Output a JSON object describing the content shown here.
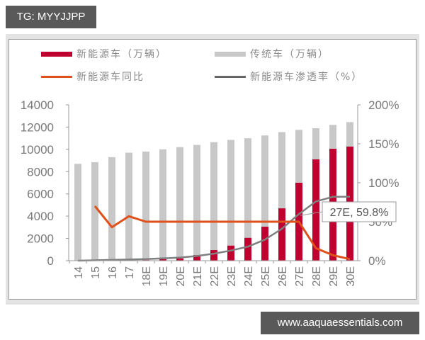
{
  "badge": {
    "text": "TG: MYYJJPP"
  },
  "watermark": {
    "text": "www.aaquaessentials.com"
  },
  "legend": {
    "nev_units": "新能源车（万辆）",
    "traditional_units": "传统车（万辆）",
    "nev_yoy": "新能源车同比",
    "nev_penetration": "新能源车渗透率（%）"
  },
  "annotation": {
    "text": "27E, 59.8%"
  },
  "colors": {
    "nev": "#c0002f",
    "traditional": "#c8c8c8",
    "yoy": "#e0501a",
    "penetration": "#7f7f7f",
    "axis": "#999999",
    "tick_text": "#7a7a7a"
  },
  "chart_data": {
    "type": "bar",
    "title": "",
    "xlabel": "",
    "ylabel": "",
    "categories": [
      "14",
      "15",
      "16",
      "17",
      "18E",
      "19E",
      "20E",
      "21E",
      "22E",
      "23E",
      "24E",
      "25E",
      "26E",
      "27E",
      "28E",
      "29E",
      "30E"
    ],
    "series": [
      {
        "name": "新能源车（万辆）",
        "type": "bar",
        "axis": "left",
        "values": [
          0,
          0,
          0,
          0,
          50,
          130,
          200,
          500,
          950,
          1350,
          2050,
          3050,
          4700,
          7000,
          9100,
          10050,
          10250
        ]
      },
      {
        "name": "传统车（万辆）",
        "type": "bar",
        "axis": "left",
        "stacked_total": true,
        "values": [
          8700,
          8850,
          9300,
          9700,
          9800,
          10000,
          10200,
          10400,
          10650,
          10850,
          11000,
          11250,
          11550,
          11750,
          11900,
          12200,
          12450
        ]
      },
      {
        "name": "新能源车同比",
        "type": "line",
        "axis": "right",
        "values": [
          null,
          70,
          43,
          57,
          50,
          50,
          50,
          50,
          50,
          50,
          50,
          50,
          50,
          50,
          16,
          7,
          2
        ]
      },
      {
        "name": "新能源车渗透率（%）",
        "type": "line",
        "axis": "right",
        "values": [
          0,
          0.5,
          1,
          1.5,
          2,
          3,
          4,
          6,
          9,
          13,
          18,
          27,
          41,
          59.8,
          76,
          82,
          82
        ]
      }
    ],
    "left_axis": {
      "ylim": [
        0,
        14000
      ],
      "ticks": [
        "0",
        "2000",
        "4000",
        "6000",
        "8000",
        "10000",
        "12000",
        "14000"
      ]
    },
    "right_axis": {
      "ylim": [
        0,
        200
      ],
      "ticks": [
        "0%",
        "50%",
        "100%",
        "150%",
        "200%"
      ]
    },
    "annotations": [
      {
        "category": "27E",
        "text": "27E, 59.8%"
      }
    ],
    "grid": false,
    "legend_position": "top"
  }
}
